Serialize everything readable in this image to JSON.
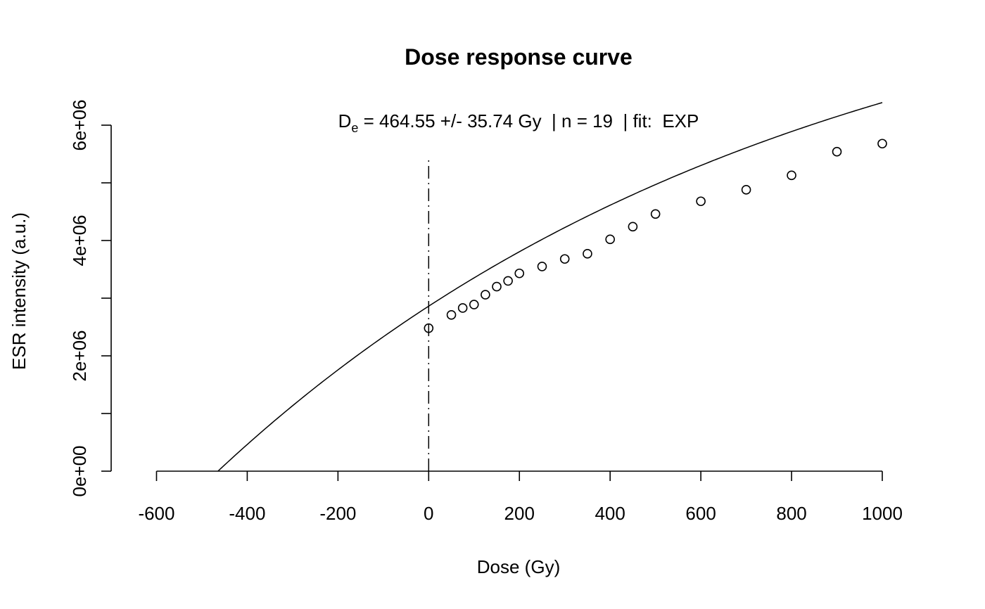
{
  "chart_data": {
    "type": "scatter",
    "title": "Dose response curve",
    "subtitle": {
      "d": "D",
      "sub": "e",
      "text": " = 464.55 +/- 35.74 Gy  | n = 19  | fit:  EXP"
    },
    "xlabel": "Dose (Gy)",
    "ylabel": "ESR intensity (a.u.)",
    "xlim": [
      -700,
      1000
    ],
    "ylim": [
      0,
      6000000
    ],
    "x_ticks": [
      -600,
      -400,
      -200,
      0,
      200,
      400,
      600,
      800,
      1000
    ],
    "x_tick_labels": [
      "-600",
      "-400",
      "-200",
      "0",
      "200",
      "400",
      "600",
      "800",
      "1000"
    ],
    "y_ticks": [
      0,
      1000000,
      2000000,
      3000000,
      4000000,
      5000000,
      6000000
    ],
    "y_tick_labels": [
      "0e+00",
      "",
      "2e+06",
      "",
      "4e+06",
      "",
      "6e+06"
    ],
    "grid": false,
    "points": {
      "x": [
        0,
        50,
        75,
        100,
        125,
        150,
        175,
        200,
        250,
        300,
        350,
        400,
        450,
        500,
        600,
        700,
        800,
        900,
        1000
      ],
      "y": [
        2480000,
        2710000,
        2830000,
        2890000,
        3060000,
        3200000,
        3300000,
        3430000,
        3550000,
        3680000,
        3770000,
        4020000,
        4240000,
        4460000,
        4680000,
        4880000,
        5130000,
        5540000,
        5680000
      ]
    },
    "fit": {
      "model": "EXP",
      "a": 9340000,
      "b": 1270,
      "c": 464.55,
      "x_range": [
        -464.55,
        1000
      ]
    },
    "de_line_x": 0
  }
}
